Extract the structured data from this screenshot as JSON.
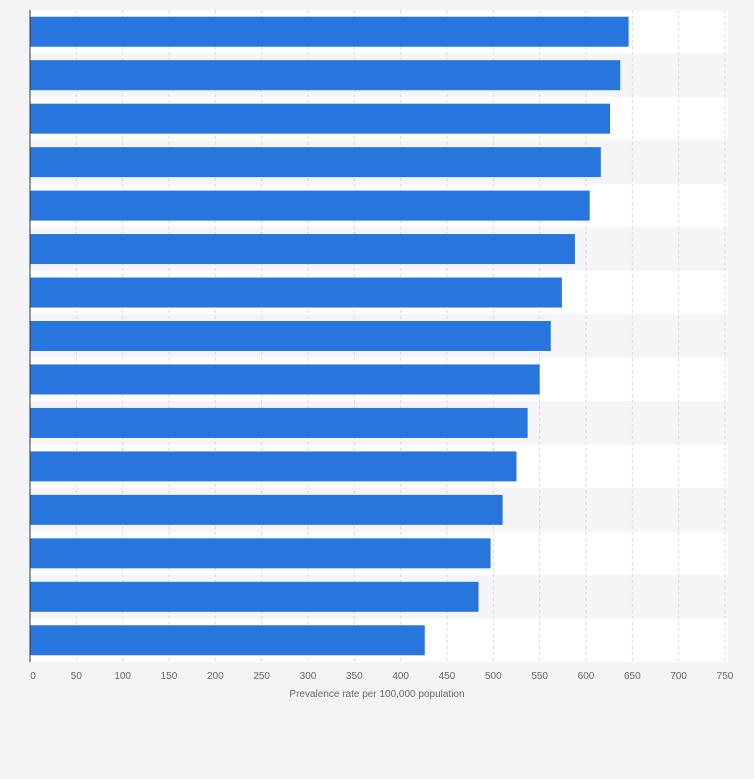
{
  "chart_data": {
    "type": "bar",
    "orientation": "horizontal",
    "title": "",
    "xlabel": "Prevalence rate per 100,000 population",
    "ylabel": "",
    "xlim": [
      0,
      750
    ],
    "xticks": [
      "0",
      "50",
      "100",
      "150",
      "200",
      "250",
      "300",
      "350",
      "400",
      "450",
      "500",
      "550",
      "600",
      "650",
      "700",
      "750"
    ],
    "values": [
      646,
      637,
      626,
      616,
      604,
      588,
      574,
      562,
      550,
      537,
      525,
      510,
      497,
      484,
      426
    ],
    "grid": true,
    "bar_color": "#2876dd",
    "gridline_color": "#d8d8dc",
    "band_colors": [
      "#ffffff",
      "#f5f5f7"
    ]
  }
}
